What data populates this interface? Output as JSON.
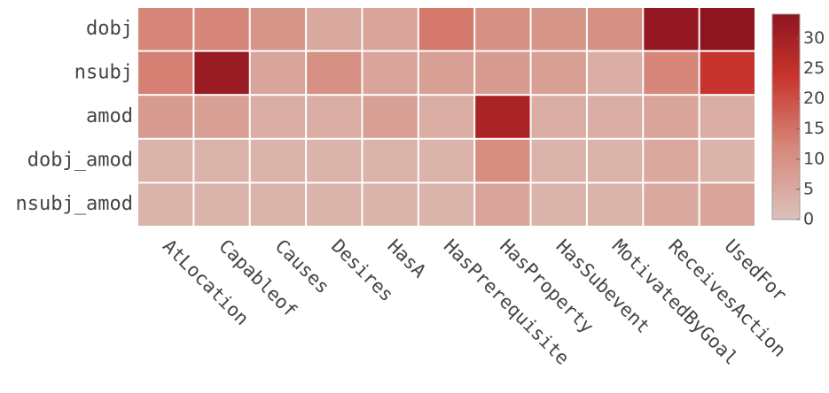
{
  "chart_data": {
    "type": "heatmap",
    "x": [
      "AtLocation",
      "Capableof",
      "Causes",
      "Desires",
      "HasA",
      "HasPrerequisite",
      "HasProperty",
      "HasSubevent",
      "MotivatedByGoal",
      "ReceivesAction",
      "UsedFor"
    ],
    "y": [
      "dobj",
      "nsubj",
      "amod",
      "dobj_amod",
      "nsubj_amod"
    ],
    "z": [
      [
        12,
        12,
        9,
        5,
        6,
        14,
        10,
        9,
        10,
        33,
        34
      ],
      [
        13,
        32,
        6,
        10,
        6,
        7,
        8,
        7,
        4,
        12,
        24
      ],
      [
        8,
        7,
        4,
        4,
        7,
        4,
        29,
        4,
        4,
        6,
        4
      ],
      [
        3,
        3,
        3,
        3,
        3,
        3,
        11,
        3,
        3,
        5,
        3
      ],
      [
        3,
        3,
        3,
        3,
        3,
        3,
        6,
        3,
        3,
        5,
        6
      ]
    ],
    "zlim": [
      0,
      34
    ],
    "zticks": [
      0,
      5,
      10,
      15,
      20,
      25,
      30
    ],
    "colorscale": [
      [
        0,
        "#dcc1bb"
      ],
      [
        0.35,
        "#d6887a"
      ],
      [
        0.7,
        "#c8342d"
      ],
      [
        1,
        "#8e1520"
      ]
    ]
  }
}
